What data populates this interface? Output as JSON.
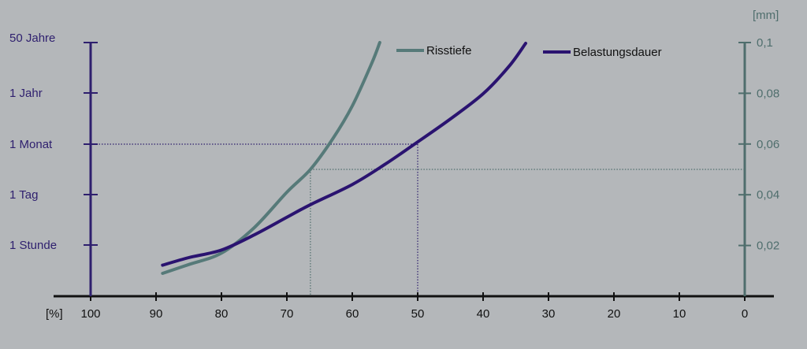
{
  "colors": {
    "background": "#b4b7ba",
    "left_axis": "#2e1f6e",
    "right_axis": "#4f6e6d",
    "x_axis": "#111111",
    "series_risstiefe": "#567a79",
    "series_belastungsdauer": "#2a1370"
  },
  "chart_data": {
    "type": "line",
    "title": "",
    "x_axis": {
      "label": "[%]",
      "ticks": [
        100,
        90,
        80,
        70,
        60,
        50,
        40,
        30,
        20,
        10,
        0
      ],
      "range": [
        100,
        0
      ]
    },
    "y_axis_left": {
      "label": "",
      "ticks": [
        "1 Stunde",
        "1 Tag",
        "1 Monat",
        "1 Jahr",
        "50 Jahre"
      ]
    },
    "y_axis_right": {
      "label": "[mm]",
      "ticks": [
        "0,02",
        "0,04",
        "0,06",
        "0,08",
        "0,1"
      ],
      "tick_values": [
        0.02,
        0.04,
        0.06,
        0.08,
        0.1
      ],
      "range": [
        0,
        0.1
      ]
    },
    "legend_position": "top-right",
    "series": [
      {
        "name": "Risstiefe",
        "axis": "right",
        "points": [
          [
            89,
            0.009
          ],
          [
            85,
            0.0125
          ],
          [
            80,
            0.017
          ],
          [
            75,
            0.027
          ],
          [
            70,
            0.041
          ],
          [
            66.4,
            0.05
          ],
          [
            63,
            0.062
          ],
          [
            60,
            0.075
          ],
          [
            57,
            0.092
          ],
          [
            55.8,
            0.1
          ]
        ]
      },
      {
        "name": "Belastungsdauer",
        "axis": "left",
        "level_scale": "1 Stunde = 1, 1 Tag = 2, 1 Monat = 3, 1 Jahr = 4, 50 Jahre = 5",
        "points": [
          [
            89,
            0.6
          ],
          [
            85,
            0.75
          ],
          [
            80,
            0.9
          ],
          [
            75,
            1.2
          ],
          [
            70,
            1.55
          ],
          [
            66.4,
            1.8
          ],
          [
            60,
            2.2
          ],
          [
            55,
            2.6
          ],
          [
            50.5,
            3.0
          ],
          [
            45,
            3.5
          ],
          [
            40,
            4.0
          ],
          [
            36,
            4.55
          ],
          [
            33.5,
            5.0
          ]
        ]
      }
    ],
    "reference_lines": [
      {
        "from_left_level": 3,
        "to_x": 50,
        "style": "dotted",
        "color": "left_axis"
      },
      {
        "from_x": 66.4,
        "right_value": 0.05,
        "style": "dotted",
        "color": "right_axis"
      }
    ]
  }
}
